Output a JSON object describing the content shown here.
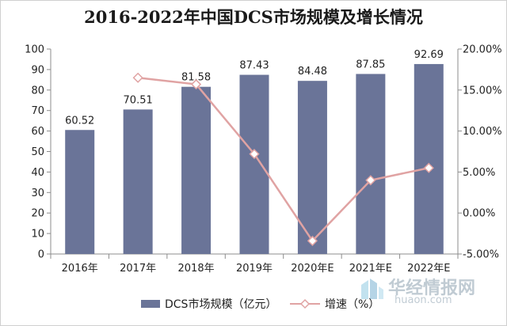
{
  "chart_data": {
    "type": "bar",
    "title": "2016-2022年中国DCS市场规模及增长情况",
    "categories": [
      "2016年",
      "2017年",
      "2018年",
      "2019年",
      "2020年E",
      "2021年E",
      "2022年E"
    ],
    "series": [
      {
        "name": "DCS市场规模（亿元）",
        "type": "bar",
        "axis": "left",
        "values": [
          60.52,
          70.51,
          81.58,
          87.43,
          84.48,
          87.85,
          92.69
        ],
        "data_labels": [
          "60.52",
          "70.51",
          "81.58",
          "87.43",
          "84.48",
          "87.85",
          "92.69"
        ]
      },
      {
        "name": "增速（%）",
        "type": "line",
        "axis": "right",
        "values": [
          null,
          16.5,
          15.7,
          7.2,
          -3.4,
          4.0,
          5.5
        ]
      }
    ],
    "left_axis": {
      "ylim": [
        0,
        100
      ],
      "ticks": [
        "0",
        "10",
        "20",
        "30",
        "40",
        "50",
        "60",
        "70",
        "80",
        "90",
        "100"
      ]
    },
    "right_axis": {
      "ylim": [
        -5,
        20
      ],
      "ticks": [
        "-5.00%",
        "0.00%",
        "5.00%",
        "10.00%",
        "15.00%",
        "20.00%"
      ]
    },
    "legend": "bottom",
    "grid": false,
    "colors": {
      "bar": "#6a7498",
      "line": "#e0a3a3",
      "marker_fill": "#ffffff"
    }
  },
  "watermark": {
    "brand": "华经情报网",
    "url": "huaon.com"
  }
}
